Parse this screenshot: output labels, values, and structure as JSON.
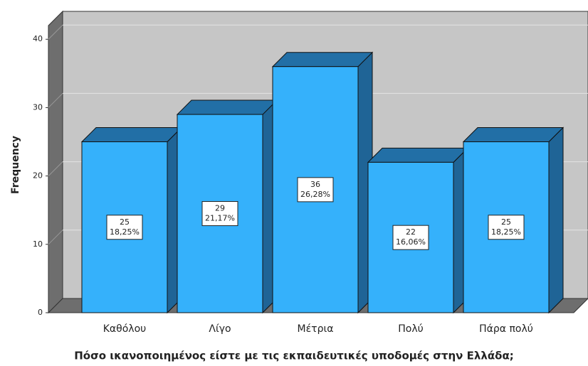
{
  "chart_data": {
    "type": "bar3d",
    "x_label": "Πόσο ικανοποιημένος είστε με τις εκπαιδευτικές υποδομές στην Ελλάδα;",
    "y_label": "Frequency",
    "categories": [
      "Καθόλου",
      "Λίγο",
      "Μέτρια",
      "Πολύ",
      "Πάρα πολύ"
    ],
    "values": [
      25,
      29,
      36,
      22,
      25
    ],
    "percent_labels": [
      "18,25%",
      "21,17%",
      "26,28%",
      "16,06%",
      "18,25%"
    ],
    "color": "#35b1fb",
    "ylim": [
      0,
      42
    ],
    "yticks": [
      0,
      10,
      20,
      30,
      40
    ],
    "grid": true
  }
}
